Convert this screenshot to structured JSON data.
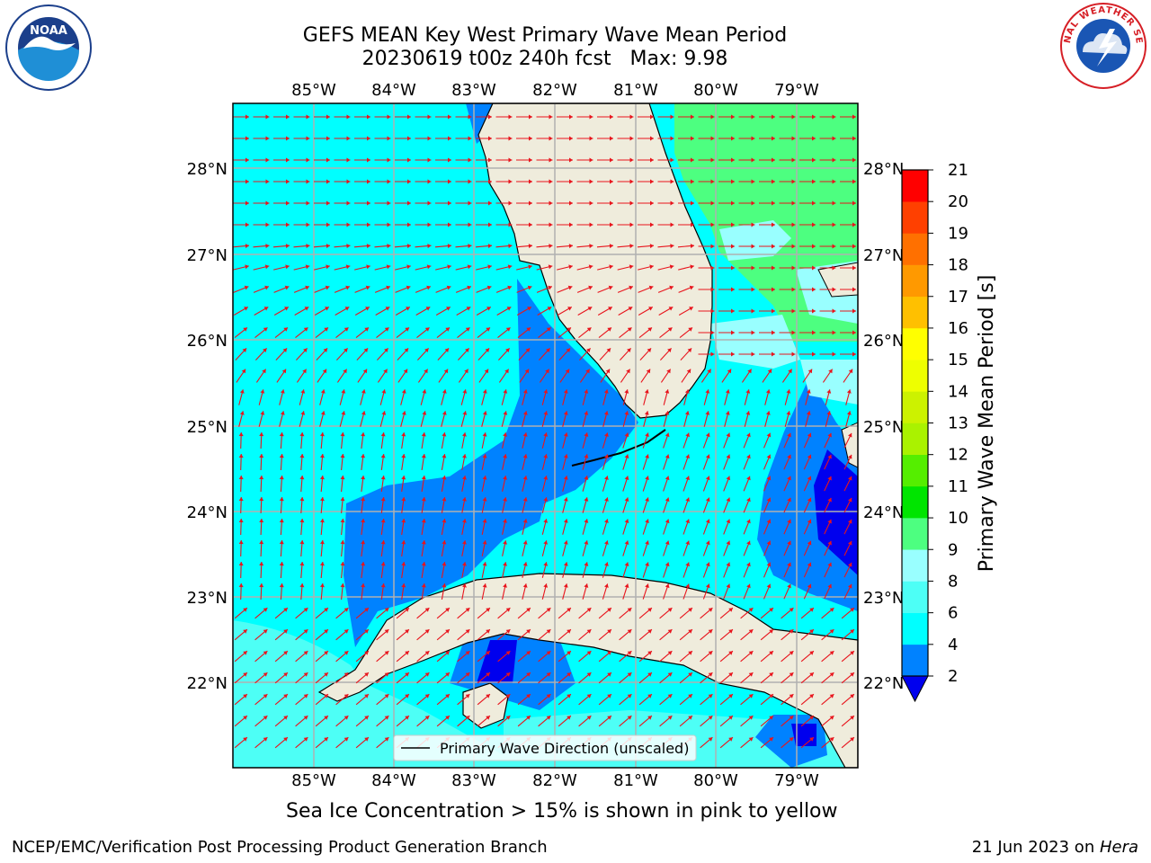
{
  "header": {
    "title_line1": "GEFS MEAN Key West Primary Wave Mean Period",
    "title_line2": "20230619 t00z 240h fcst   Max: 9.98"
  },
  "logos": {
    "left": {
      "name": "NOAA",
      "icon": "noaa-logo-icon",
      "colors": {
        "ring": "#1b3f8b",
        "water": "#1f8fd6",
        "bird": "#ffffff"
      }
    },
    "right": {
      "name": "National Weather Service",
      "icon": "nws-logo-icon",
      "ring_text": "NATIONAL WEATHER SERVICE",
      "colors": {
        "ring": "#d61f26",
        "inner": "#1a56b4"
      }
    }
  },
  "map": {
    "longitude_labels": [
      "85°W",
      "84°W",
      "83°W",
      "82°W",
      "81°W",
      "80°W",
      "79°W"
    ],
    "latitude_labels": [
      "28°N",
      "27°N",
      "26°N",
      "25°N",
      "24°N",
      "23°N",
      "22°N"
    ],
    "legend_label": "Primary Wave Direction (unscaled)",
    "vector_color": "#e8141c",
    "land_color": "#efecdc",
    "grid_color": "#b0b0b0"
  },
  "colorbar": {
    "label": "Primary Wave Mean Period [s]",
    "tick_labels": [
      "2",
      "4",
      "6",
      "8",
      "9",
      "10",
      "11",
      "12",
      "13",
      "14",
      "15",
      "16",
      "17",
      "18",
      "19",
      "20",
      "21"
    ],
    "levels": [
      {
        "from": 2,
        "to": 4,
        "color": "#0082ff"
      },
      {
        "from": 4,
        "to": 6,
        "color": "#00ffff"
      },
      {
        "from": 6,
        "to": 8,
        "color": "#4dfff6"
      },
      {
        "from": 8,
        "to": 9,
        "color": "#99ffff"
      },
      {
        "from": 9,
        "to": 10,
        "color": "#4dff80"
      },
      {
        "from": 10,
        "to": 11,
        "color": "#00e500"
      },
      {
        "from": 11,
        "to": 12,
        "color": "#55ee00"
      },
      {
        "from": 12,
        "to": 13,
        "color": "#aaf200"
      },
      {
        "from": 13,
        "to": 14,
        "color": "#ccf200"
      },
      {
        "from": 14,
        "to": 15,
        "color": "#eeff00"
      },
      {
        "from": 15,
        "to": 16,
        "color": "#ffff00"
      },
      {
        "from": 16,
        "to": 17,
        "color": "#ffc000"
      },
      {
        "from": 17,
        "to": 18,
        "color": "#ff9900"
      },
      {
        "from": 18,
        "to": 19,
        "color": "#ff7000"
      },
      {
        "from": 19,
        "to": 20,
        "color": "#ff4000"
      },
      {
        "from": 20,
        "to": 21,
        "color": "#ff0000"
      }
    ],
    "under_color": "#0000ee"
  },
  "footer": {
    "sea_ice_note": "Sea Ice Concentration > 15% is shown in pink to yellow",
    "producer": "NCEP/EMC/Verification Post Processing Product Generation Branch",
    "date_text": "21 Jun 2023 on ",
    "host": "Hera"
  }
}
